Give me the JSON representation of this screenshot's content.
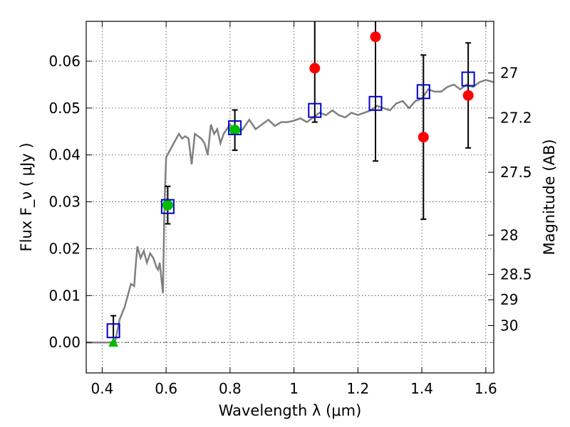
{
  "chart_data": {
    "type": "scatter",
    "xlabel": "Wavelength  λ (μm)",
    "ylabel": "Flux  F_ν  ( μJy )",
    "y2label": "Magnitude (AB)",
    "xlim": [
      0.35,
      1.625
    ],
    "ylim": [
      -0.0065,
      0.0685
    ],
    "grid": true,
    "x_ticks": [
      0.4,
      0.6,
      0.8,
      1.0,
      1.2,
      1.4,
      1.6
    ],
    "x_tick_labels": [
      "0.4",
      "0.6",
      "0.8",
      "1",
      "1.2",
      "1.4",
      "1.6"
    ],
    "y_ticks": [
      0.0,
      0.01,
      0.02,
      0.03,
      0.04,
      0.05,
      0.06
    ],
    "y_tick_labels": [
      "0.00",
      "0.01",
      "0.02",
      "0.03",
      "0.04",
      "0.05",
      "0.06"
    ],
    "y2_ticks": [
      {
        "label": "27",
        "flux": 0.0575
      },
      {
        "label": "27.2",
        "flux": 0.0479
      },
      {
        "label": "27.5",
        "flux": 0.0363
      },
      {
        "label": "28",
        "flux": 0.0229
      },
      {
        "label": "28.5",
        "flux": 0.0145
      },
      {
        "label": "29",
        "flux": 0.0091
      },
      {
        "label": "30",
        "flux": 0.0036
      }
    ],
    "model_spectrum": {
      "color": "#808080",
      "x": [
        0.35,
        0.44,
        0.455,
        0.47,
        0.48,
        0.49,
        0.5,
        0.505,
        0.51,
        0.52,
        0.53,
        0.54,
        0.55,
        0.56,
        0.57,
        0.575,
        0.58,
        0.59,
        0.595,
        0.6,
        0.62,
        0.64,
        0.65,
        0.66,
        0.67,
        0.68,
        0.69,
        0.7,
        0.71,
        0.72,
        0.73,
        0.74,
        0.75,
        0.76,
        0.77,
        0.78,
        0.8,
        0.82,
        0.84,
        0.86,
        0.88,
        0.9,
        0.92,
        0.94,
        0.96,
        0.98,
        1.0,
        1.02,
        1.04,
        1.06,
        1.08,
        1.1,
        1.12,
        1.14,
        1.16,
        1.18,
        1.2,
        1.22,
        1.24,
        1.26,
        1.28,
        1.3,
        1.32,
        1.34,
        1.36,
        1.38,
        1.4,
        1.42,
        1.44,
        1.46,
        1.48,
        1.5,
        1.52,
        1.54,
        1.56,
        1.58,
        1.6,
        1.625
      ],
      "y": [
        0.0,
        0.0,
        0.005,
        0.0075,
        0.01,
        0.0125,
        0.012,
        0.0165,
        0.0205,
        0.018,
        0.0195,
        0.017,
        0.019,
        0.018,
        0.016,
        0.0155,
        0.017,
        0.0105,
        0.03,
        0.0395,
        0.042,
        0.0445,
        0.0435,
        0.044,
        0.0435,
        0.038,
        0.0445,
        0.044,
        0.0435,
        0.0425,
        0.04,
        0.0465,
        0.0445,
        0.0455,
        0.0425,
        0.0445,
        0.0465,
        0.0445,
        0.0455,
        0.0475,
        0.0455,
        0.0465,
        0.0475,
        0.0462,
        0.047,
        0.047,
        0.0473,
        0.0478,
        0.047,
        0.048,
        0.049,
        0.0485,
        0.0495,
        0.0485,
        0.048,
        0.049,
        0.0485,
        0.049,
        0.0495,
        0.0505,
        0.05,
        0.0495,
        0.051,
        0.0515,
        0.05,
        0.0515,
        0.052,
        0.054,
        0.0535,
        0.0535,
        0.0545,
        0.055,
        0.054,
        0.055,
        0.0545,
        0.0555,
        0.056,
        0.0555
      ]
    },
    "series": [
      {
        "marker": "square",
        "color": "#0000cc",
        "x": [
          0.435,
          0.605,
          0.815,
          1.065,
          1.255,
          1.405,
          1.545
        ],
        "y": [
          0.0025,
          0.029,
          0.0458,
          0.0495,
          0.051,
          0.0535,
          0.0562
        ]
      },
      {
        "marker": "circle",
        "color": "#ff0000",
        "x": [
          1.065,
          1.255,
          1.405,
          1.545
        ],
        "y": [
          0.0585,
          0.0652,
          0.0438,
          0.0527
        ],
        "yerr": [
          0.0115,
          0.0265,
          0.0175,
          0.0112
        ]
      },
      {
        "marker": "circle",
        "color": "#00bb00",
        "x": [
          0.605,
          0.815
        ],
        "y": [
          0.0293,
          0.0453
        ],
        "yerr": [
          0.004,
          0.0043
        ]
      },
      {
        "marker": "triangle",
        "color": "#00bb00",
        "x": [
          0.435
        ],
        "y": [
          0.0
        ],
        "yerr_upper": [
          0.0057
        ]
      }
    ]
  }
}
